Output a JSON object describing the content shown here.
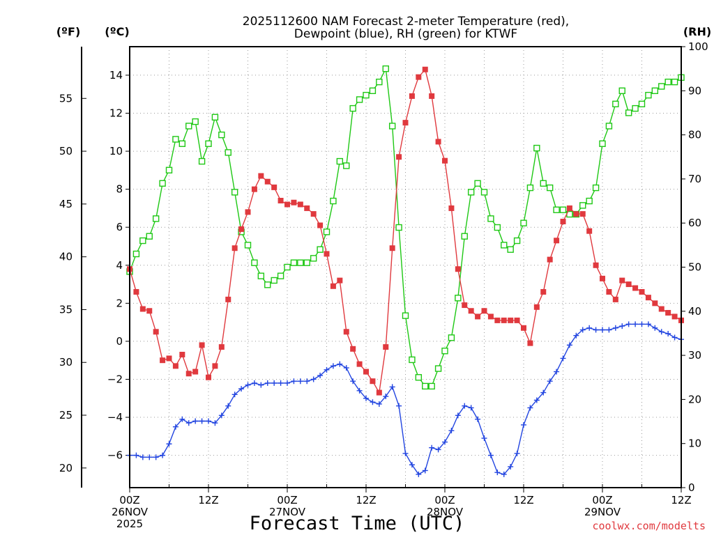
{
  "chart_data": {
    "type": "line",
    "title": [
      "2025112600 NAM Forecast 2-meter Temperature (red),",
      "Dewpoint (blue), RH (green) for KTWF"
    ],
    "xlabel": "Forecast Time (UTC)",
    "credit": "coolwx.com/modelts",
    "units": {
      "fahrenheit": "(ºF)",
      "celsius": "(ºC)",
      "rh": "(RH)"
    },
    "x_ticks": [
      {
        "hour": 0,
        "label": [
          "00Z",
          "26NOV",
          "2025"
        ]
      },
      {
        "hour": 12,
        "label": [
          "12Z"
        ]
      },
      {
        "hour": 24,
        "label": [
          "00Z",
          "27NOV"
        ]
      },
      {
        "hour": 36,
        "label": [
          "12Z"
        ]
      },
      {
        "hour": 48,
        "label": [
          "00Z",
          "28NOV"
        ]
      },
      {
        "hour": 60,
        "label": [
          "12Z"
        ]
      },
      {
        "hour": 72,
        "label": [
          "00Z",
          "29NOV"
        ]
      },
      {
        "hour": 84,
        "label": [
          "12Z"
        ]
      }
    ],
    "x_range_hours": [
      0,
      84
    ],
    "x_unit": "hours since 00Z 26NOV 2025",
    "celsius_axis": {
      "range": [
        -7.7,
        15.5
      ],
      "ticks": [
        -6,
        -4,
        -2,
        0,
        2,
        4,
        6,
        8,
        10,
        12,
        14
      ]
    },
    "fahrenheit_axis": {
      "ticks": [
        20,
        25,
        30,
        35,
        40,
        45,
        50,
        55
      ]
    },
    "rh_axis": {
      "range": [
        0,
        100
      ],
      "ticks": [
        0,
        10,
        20,
        30,
        40,
        50,
        60,
        70,
        80,
        90,
        100
      ]
    },
    "grid": true,
    "series": [
      {
        "name": "Temperature",
        "axis": "celsius",
        "color": "#e0393e",
        "marker": "filled-square",
        "x": [
          0,
          1,
          2,
          3,
          4,
          5,
          6,
          7,
          8,
          9,
          10,
          11,
          12,
          13,
          14,
          15,
          16,
          17,
          18,
          19,
          20,
          21,
          22,
          23,
          24,
          25,
          26,
          27,
          28,
          29,
          30,
          31,
          32,
          33,
          34,
          35,
          36,
          37,
          38,
          39,
          40,
          41,
          42,
          43,
          44,
          45,
          46,
          47,
          48,
          49,
          50,
          51,
          52,
          53,
          54,
          55,
          56,
          57,
          58,
          59,
          60,
          61,
          62,
          63,
          64,
          65,
          66,
          67,
          68,
          69,
          70,
          71,
          72,
          73,
          74,
          75,
          76,
          77,
          78,
          79,
          80,
          81,
          82,
          83,
          84
        ],
        "values": [
          3.8,
          2.6,
          1.7,
          1.6,
          0.5,
          -1.0,
          -0.9,
          -1.3,
          -0.7,
          -1.7,
          -1.6,
          -0.2,
          -1.9,
          -1.3,
          -0.3,
          2.2,
          4.9,
          5.9,
          6.8,
          8.0,
          8.7,
          8.4,
          8.1,
          7.4,
          7.2,
          7.3,
          7.2,
          7.0,
          6.7,
          6.1,
          4.6,
          2.9,
          3.2,
          0.5,
          -0.4,
          -1.2,
          -1.6,
          -2.1,
          -2.7,
          -0.3,
          4.9,
          9.7,
          11.5,
          12.9,
          13.9,
          14.3,
          12.9,
          10.5,
          9.5,
          7.0,
          3.8,
          1.9,
          1.6,
          1.3,
          1.6,
          1.3,
          1.1,
          1.1,
          1.1,
          1.1,
          0.7,
          -0.1,
          1.8,
          2.6,
          4.3,
          5.3,
          6.3,
          7.0,
          6.7,
          6.7,
          5.8,
          4.0,
          3.3,
          2.6,
          2.2,
          3.2,
          3.0,
          2.8,
          2.6,
          2.3,
          2.0,
          1.7,
          1.5,
          1.3,
          1.1
        ]
      },
      {
        "name": "Dewpoint",
        "axis": "celsius",
        "color": "#2144e0",
        "marker": "plus",
        "x": [
          0,
          1,
          2,
          3,
          4,
          5,
          6,
          7,
          8,
          9,
          10,
          11,
          12,
          13,
          14,
          15,
          16,
          17,
          18,
          19,
          20,
          21,
          22,
          23,
          24,
          25,
          26,
          27,
          28,
          29,
          30,
          31,
          32,
          33,
          34,
          35,
          36,
          37,
          38,
          39,
          40,
          41,
          42,
          43,
          44,
          45,
          46,
          47,
          48,
          49,
          50,
          51,
          52,
          53,
          54,
          55,
          56,
          57,
          58,
          59,
          60,
          61,
          62,
          63,
          64,
          65,
          66,
          67,
          68,
          69,
          70,
          71,
          72,
          73,
          74,
          75,
          76,
          77,
          78,
          79,
          80,
          81,
          82,
          83,
          84
        ],
        "values": [
          -6.0,
          -6.0,
          -6.1,
          -6.1,
          -6.1,
          -6.0,
          -5.4,
          -4.5,
          -4.1,
          -4.3,
          -4.2,
          -4.2,
          -4.2,
          -4.3,
          -3.9,
          -3.4,
          -2.8,
          -2.5,
          -2.3,
          -2.2,
          -2.3,
          -2.2,
          -2.2,
          -2.2,
          -2.2,
          -2.1,
          -2.1,
          -2.1,
          -2.0,
          -1.8,
          -1.5,
          -1.3,
          -1.2,
          -1.4,
          -2.1,
          -2.6,
          -3.0,
          -3.2,
          -3.3,
          -2.9,
          -2.4,
          -3.4,
          -5.9,
          -6.5,
          -7.0,
          -6.8,
          -5.6,
          -5.7,
          -5.3,
          -4.7,
          -3.9,
          -3.4,
          -3.5,
          -4.1,
          -5.1,
          -6.0,
          -6.9,
          -7.0,
          -6.6,
          -5.9,
          -4.4,
          -3.5,
          -3.1,
          -2.7,
          -2.1,
          -1.6,
          -0.9,
          -0.2,
          0.3,
          0.6,
          0.7,
          0.6,
          0.6,
          0.6,
          0.7,
          0.8,
          0.9,
          0.9,
          0.9,
          0.9,
          0.7,
          0.5,
          0.4,
          0.2,
          0.1
        ]
      },
      {
        "name": "RH",
        "axis": "rh",
        "color": "#1ec814",
        "marker": "open-square",
        "x": [
          0,
          1,
          2,
          3,
          4,
          5,
          6,
          7,
          8,
          9,
          10,
          11,
          12,
          13,
          14,
          15,
          16,
          17,
          18,
          19,
          20,
          21,
          22,
          23,
          24,
          25,
          26,
          27,
          28,
          29,
          30,
          31,
          32,
          33,
          34,
          35,
          36,
          37,
          38,
          39,
          40,
          41,
          42,
          43,
          44,
          45,
          46,
          47,
          48,
          49,
          50,
          51,
          52,
          53,
          54,
          55,
          56,
          57,
          58,
          59,
          60,
          61,
          62,
          63,
          64,
          65,
          66,
          67,
          68,
          69,
          70,
          71,
          72,
          73,
          74,
          75,
          76,
          77,
          78,
          79,
          80,
          81,
          82,
          83,
          84
        ],
        "values": [
          49,
          53,
          56,
          57,
          61,
          69,
          72,
          79,
          78,
          82,
          83,
          74,
          78,
          84,
          80,
          76,
          67,
          58,
          55,
          51,
          48,
          46,
          47,
          48,
          50,
          51,
          51,
          51,
          52,
          54,
          58,
          65,
          74,
          73,
          86,
          88,
          89,
          90,
          92,
          95,
          82,
          59,
          39,
          29,
          25,
          23,
          23,
          27,
          31,
          34,
          43,
          57,
          67,
          69,
          67,
          61,
          59,
          55,
          54,
          56,
          60,
          68,
          77,
          69,
          68,
          63,
          63,
          62,
          62,
          64,
          65,
          68,
          78,
          82,
          87,
          90,
          85,
          86,
          87,
          89,
          90,
          91,
          92,
          92,
          93
        ]
      }
    ]
  }
}
